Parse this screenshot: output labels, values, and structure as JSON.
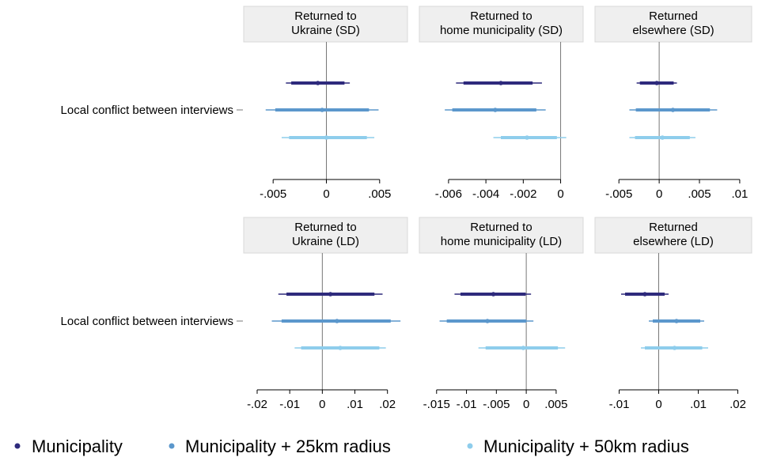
{
  "chart_data": {
    "type": "coefficient-plot",
    "row_label": "Local conflict between interviews",
    "legend": [
      {
        "name": "Municipality",
        "color": "#2e2a7c"
      },
      {
        "name": "Municipality + 25km radius",
        "color": "#5b97cc"
      },
      {
        "name": "Municipality + 50km radius",
        "color": "#8ecdec"
      }
    ],
    "panels": [
      {
        "title": [
          "Returned to",
          "Ukraine (SD)"
        ],
        "xlim": [
          -0.0065,
          0.0065
        ],
        "ticks": [
          -0.005,
          0,
          0.005
        ],
        "tick_labels": [
          "-.005",
          "0",
          ".005"
        ],
        "series": [
          {
            "estimate": -0.0008,
            "ci95": [
              -0.0038,
              0.0022
            ],
            "ci90": [
              -0.0033,
              0.0017
            ]
          },
          {
            "estimate": -0.0004,
            "ci95": [
              -0.0057,
              0.0049
            ],
            "ci90": [
              -0.0048,
              0.004
            ]
          },
          {
            "estimate": 0.0,
            "ci95": [
              -0.0042,
              0.0045
            ],
            "ci90": [
              -0.0035,
              0.0038
            ]
          }
        ]
      },
      {
        "title": [
          "Returned to",
          "home municipality (SD)"
        ],
        "xlim": [
          -0.0068,
          0.0004
        ],
        "ticks": [
          -0.006,
          -0.004,
          -0.002,
          0
        ],
        "tick_labels": [
          "-.006",
          "-.004",
          "-.002",
          "0"
        ],
        "series": [
          {
            "estimate": -0.0032,
            "ci95": [
              -0.0056,
              -0.001
            ],
            "ci90": [
              -0.0052,
              -0.0015
            ]
          },
          {
            "estimate": -0.0035,
            "ci95": [
              -0.0062,
              -0.0008
            ],
            "ci90": [
              -0.0058,
              -0.0013
            ]
          },
          {
            "estimate": -0.0018,
            "ci95": [
              -0.0036,
              0.0003
            ],
            "ci90": [
              -0.0032,
              -0.0002
            ]
          }
        ]
      },
      {
        "title": [
          "Returned",
          "elsewhere (SD)"
        ],
        "xlim": [
          -0.0062,
          0.0105
        ],
        "ticks": [
          -0.005,
          0,
          0.005,
          0.01
        ],
        "tick_labels": [
          "-.005",
          "0",
          ".005",
          ".01"
        ],
        "series": [
          {
            "estimate": -0.0003,
            "ci95": [
              -0.0028,
              0.0022
            ],
            "ci90": [
              -0.0024,
              0.0018
            ]
          },
          {
            "estimate": 0.0017,
            "ci95": [
              -0.0037,
              0.0072
            ],
            "ci90": [
              -0.0029,
              0.0063
            ]
          },
          {
            "estimate": 0.0004,
            "ci95": [
              -0.0037,
              0.0045
            ],
            "ci90": [
              -0.003,
              0.0038
            ]
          }
        ]
      },
      {
        "title": [
          "Returned to",
          "Ukraine (LD)"
        ],
        "xlim": [
          -0.02,
          0.0225
        ],
        "ticks": [
          -0.02,
          -0.01,
          0,
          0.01,
          0.02
        ],
        "tick_labels": [
          "-.02",
          "-.01",
          "0",
          ".01",
          ".02"
        ],
        "series": [
          {
            "estimate": 0.0025,
            "ci95": [
              -0.0135,
              0.0185
            ],
            "ci90": [
              -0.011,
              0.016
            ]
          },
          {
            "estimate": 0.0045,
            "ci95": [
              -0.0155,
              0.024
            ],
            "ci90": [
              -0.0125,
              0.021
            ]
          },
          {
            "estimate": 0.0055,
            "ci95": [
              -0.0085,
              0.0195
            ],
            "ci90": [
              -0.0065,
              0.0175
            ]
          }
        ]
      },
      {
        "title": [
          "Returned to",
          "home municipality (LD)"
        ],
        "xlim": [
          -0.0155,
          0.007
        ],
        "ticks": [
          -0.015,
          -0.01,
          -0.005,
          0,
          0.005
        ],
        "tick_labels": [
          "-.015",
          "-.01",
          "-.005",
          "0",
          ".005"
        ],
        "series": [
          {
            "estimate": -0.0055,
            "ci95": [
              -0.012,
              0.0008
            ],
            "ci90": [
              -0.011,
              -0.0001
            ]
          },
          {
            "estimate": -0.0065,
            "ci95": [
              -0.0145,
              0.0012
            ],
            "ci90": [
              -0.0133,
              0.0
            ]
          },
          {
            "estimate": -0.0005,
            "ci95": [
              -0.008,
              0.0065
            ],
            "ci90": [
              -0.0068,
              0.0053
            ]
          }
        ]
      },
      {
        "title": [
          "Returned",
          "elsewhere (LD)"
        ],
        "xlim": [
          -0.0125,
          0.0215
        ],
        "ticks": [
          -0.01,
          0,
          0.01,
          0.02
        ],
        "tick_labels": [
          "-.01",
          "0",
          ".01",
          ".02"
        ],
        "series": [
          {
            "estimate": -0.0035,
            "ci95": [
              -0.0095,
              0.0025
            ],
            "ci90": [
              -0.0085,
              0.0015
            ]
          },
          {
            "estimate": 0.0045,
            "ci95": [
              -0.0025,
              0.0115
            ],
            "ci90": [
              -0.0015,
              0.0105
            ]
          },
          {
            "estimate": 0.004,
            "ci95": [
              -0.0045,
              0.0125
            ],
            "ci90": [
              -0.0035,
              0.011
            ]
          }
        ]
      }
    ]
  }
}
